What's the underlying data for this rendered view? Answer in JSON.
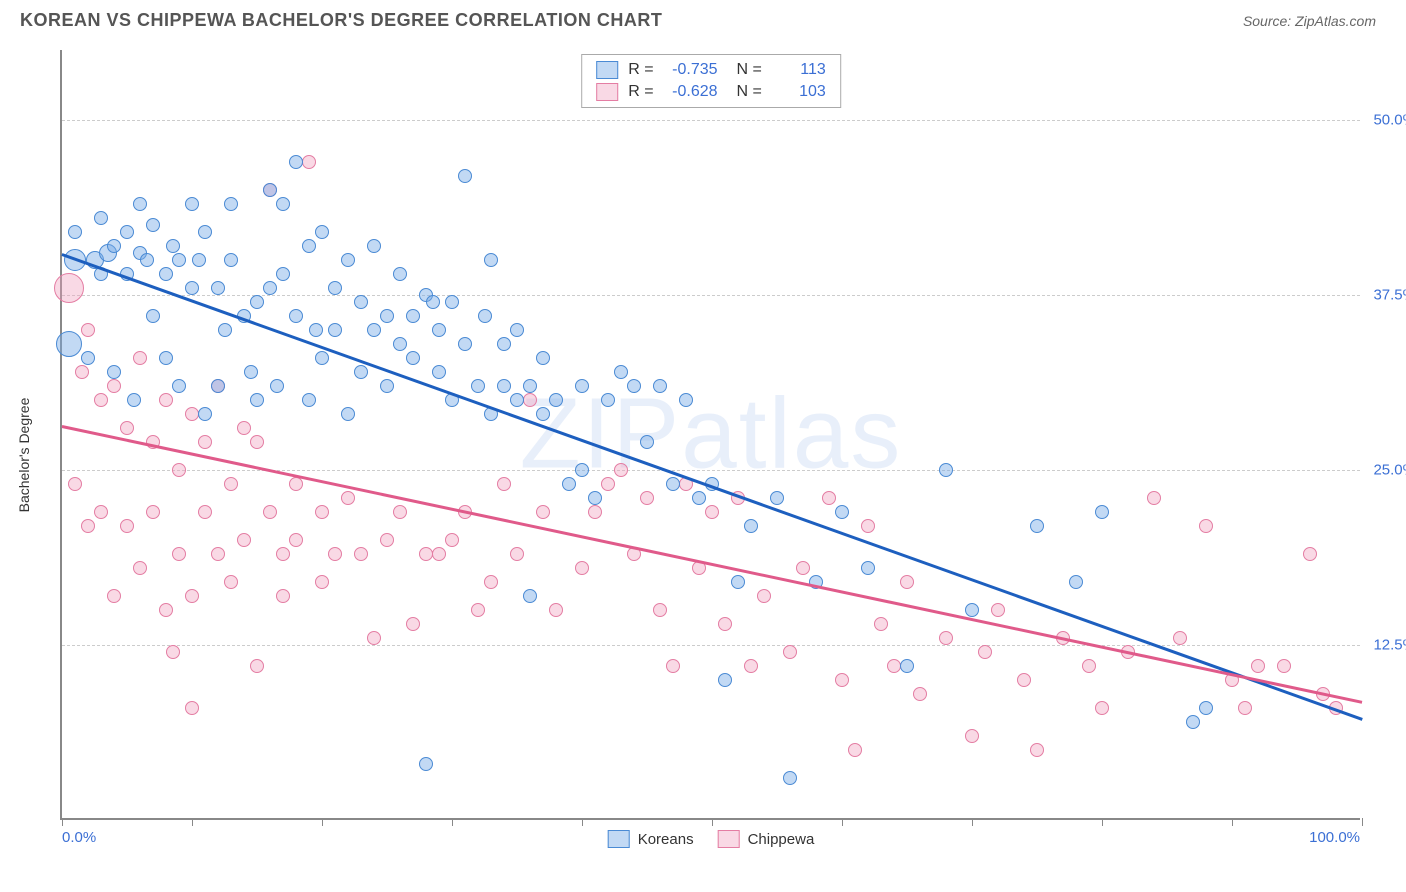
{
  "header": {
    "title": "KOREAN VS CHIPPEWA BACHELOR'S DEGREE CORRELATION CHART",
    "source": "Source: ZipAtlas.com"
  },
  "chart": {
    "ylabel": "Bachelor's Degree",
    "watermark": "ZIPatlas",
    "xlim": [
      0,
      100
    ],
    "ylim": [
      0,
      55
    ],
    "x_min_label": "0.0%",
    "x_max_label": "100.0%",
    "y_gridlines": [
      {
        "value": 12.5,
        "label": "12.5%"
      },
      {
        "value": 25.0,
        "label": "25.0%"
      },
      {
        "value": 37.5,
        "label": "37.5%"
      },
      {
        "value": 50.0,
        "label": "50.0%"
      }
    ],
    "x_ticks": [
      0,
      10,
      20,
      30,
      40,
      50,
      60,
      70,
      80,
      90,
      100
    ],
    "series": [
      {
        "name": "Koreans",
        "fill": "rgba(120,170,230,0.45)",
        "stroke": "#4a8ad4",
        "line_color": "#1d5fbf",
        "trend": {
          "x1": 0,
          "y1": 40.5,
          "x2": 100,
          "y2": 7.3
        },
        "correlation_R": "-0.735",
        "correlation_N": "113",
        "default_size": 14,
        "points": [
          {
            "x": 0.5,
            "y": 34,
            "s": 26
          },
          {
            "x": 1,
            "y": 40,
            "s": 22
          },
          {
            "x": 1,
            "y": 42
          },
          {
            "x": 2,
            "y": 33
          },
          {
            "x": 2.5,
            "y": 40,
            "s": 18
          },
          {
            "x": 3,
            "y": 43
          },
          {
            "x": 3,
            "y": 39
          },
          {
            "x": 3.5,
            "y": 40.5,
            "s": 18
          },
          {
            "x": 4,
            "y": 41
          },
          {
            "x": 4,
            "y": 32
          },
          {
            "x": 5,
            "y": 42
          },
          {
            "x": 5,
            "y": 39
          },
          {
            "x": 5.5,
            "y": 30
          },
          {
            "x": 6,
            "y": 44
          },
          {
            "x": 6,
            "y": 40.5
          },
          {
            "x": 6.5,
            "y": 40
          },
          {
            "x": 7,
            "y": 42.5
          },
          {
            "x": 7,
            "y": 36
          },
          {
            "x": 8,
            "y": 39
          },
          {
            "x": 8,
            "y": 33
          },
          {
            "x": 8.5,
            "y": 41
          },
          {
            "x": 9,
            "y": 40
          },
          {
            "x": 9,
            "y": 31
          },
          {
            "x": 10,
            "y": 38
          },
          {
            "x": 10,
            "y": 44
          },
          {
            "x": 10.5,
            "y": 40
          },
          {
            "x": 11,
            "y": 42
          },
          {
            "x": 11,
            "y": 29
          },
          {
            "x": 12,
            "y": 31
          },
          {
            "x": 12,
            "y": 38
          },
          {
            "x": 12.5,
            "y": 35
          },
          {
            "x": 13,
            "y": 40
          },
          {
            "x": 13,
            "y": 44
          },
          {
            "x": 14,
            "y": 36
          },
          {
            "x": 14.5,
            "y": 32
          },
          {
            "x": 15,
            "y": 37
          },
          {
            "x": 15,
            "y": 30
          },
          {
            "x": 16,
            "y": 45
          },
          {
            "x": 16,
            "y": 38
          },
          {
            "x": 16.5,
            "y": 31
          },
          {
            "x": 17,
            "y": 39
          },
          {
            "x": 17,
            "y": 44
          },
          {
            "x": 18,
            "y": 47
          },
          {
            "x": 18,
            "y": 36
          },
          {
            "x": 19,
            "y": 41
          },
          {
            "x": 19,
            "y": 30
          },
          {
            "x": 19.5,
            "y": 35
          },
          {
            "x": 20,
            "y": 42
          },
          {
            "x": 20,
            "y": 33
          },
          {
            "x": 21,
            "y": 38
          },
          {
            "x": 21,
            "y": 35
          },
          {
            "x": 22,
            "y": 40
          },
          {
            "x": 22,
            "y": 29
          },
          {
            "x": 23,
            "y": 37
          },
          {
            "x": 23,
            "y": 32
          },
          {
            "x": 24,
            "y": 35
          },
          {
            "x": 24,
            "y": 41
          },
          {
            "x": 25,
            "y": 31
          },
          {
            "x": 25,
            "y": 36
          },
          {
            "x": 26,
            "y": 34
          },
          {
            "x": 26,
            "y": 39
          },
          {
            "x": 27,
            "y": 33
          },
          {
            "x": 27,
            "y": 36
          },
          {
            "x": 28,
            "y": 37.5
          },
          {
            "x": 28.5,
            "y": 37
          },
          {
            "x": 29,
            "y": 32
          },
          {
            "x": 29,
            "y": 35
          },
          {
            "x": 30,
            "y": 37
          },
          {
            "x": 30,
            "y": 30
          },
          {
            "x": 31,
            "y": 46
          },
          {
            "x": 31,
            "y": 34
          },
          {
            "x": 32,
            "y": 31
          },
          {
            "x": 32.5,
            "y": 36
          },
          {
            "x": 33,
            "y": 40
          },
          {
            "x": 33,
            "y": 29
          },
          {
            "x": 34,
            "y": 31
          },
          {
            "x": 34,
            "y": 34
          },
          {
            "x": 35,
            "y": 35
          },
          {
            "x": 35,
            "y": 30
          },
          {
            "x": 36,
            "y": 31
          },
          {
            "x": 36,
            "y": 16
          },
          {
            "x": 37,
            "y": 29
          },
          {
            "x": 37,
            "y": 33
          },
          {
            "x": 38,
            "y": 30
          },
          {
            "x": 39,
            "y": 24
          },
          {
            "x": 40,
            "y": 31
          },
          {
            "x": 40,
            "y": 25
          },
          {
            "x": 41,
            "y": 23
          },
          {
            "x": 42,
            "y": 30
          },
          {
            "x": 43,
            "y": 32
          },
          {
            "x": 44,
            "y": 31
          },
          {
            "x": 45,
            "y": 27
          },
          {
            "x": 46,
            "y": 31
          },
          {
            "x": 47,
            "y": 24
          },
          {
            "x": 48,
            "y": 30
          },
          {
            "x": 28,
            "y": 4
          },
          {
            "x": 49,
            "y": 23
          },
          {
            "x": 50,
            "y": 24
          },
          {
            "x": 51,
            "y": 10
          },
          {
            "x": 52,
            "y": 17
          },
          {
            "x": 53,
            "y": 21
          },
          {
            "x": 55,
            "y": 23
          },
          {
            "x": 56,
            "y": 3
          },
          {
            "x": 58,
            "y": 17
          },
          {
            "x": 60,
            "y": 22
          },
          {
            "x": 62,
            "y": 18
          },
          {
            "x": 65,
            "y": 11
          },
          {
            "x": 68,
            "y": 25
          },
          {
            "x": 70,
            "y": 15
          },
          {
            "x": 75,
            "y": 21
          },
          {
            "x": 78,
            "y": 17
          },
          {
            "x": 80,
            "y": 22
          },
          {
            "x": 87,
            "y": 7
          },
          {
            "x": 88,
            "y": 8
          }
        ]
      },
      {
        "name": "Chippewa",
        "fill": "rgba(240,160,190,0.4)",
        "stroke": "#e47da3",
        "line_color": "#e05a8a",
        "trend": {
          "x1": 0,
          "y1": 28.2,
          "x2": 100,
          "y2": 8.5
        },
        "correlation_R": "-0.628",
        "correlation_N": "103",
        "default_size": 14,
        "points": [
          {
            "x": 0.5,
            "y": 38,
            "s": 30
          },
          {
            "x": 1,
            "y": 24
          },
          {
            "x": 1.5,
            "y": 32
          },
          {
            "x": 2,
            "y": 21
          },
          {
            "x": 2,
            "y": 35
          },
          {
            "x": 3,
            "y": 30
          },
          {
            "x": 3,
            "y": 22
          },
          {
            "x": 4,
            "y": 31
          },
          {
            "x": 4,
            "y": 16
          },
          {
            "x": 5,
            "y": 28
          },
          {
            "x": 5,
            "y": 21
          },
          {
            "x": 6,
            "y": 33
          },
          {
            "x": 6,
            "y": 18
          },
          {
            "x": 7,
            "y": 27
          },
          {
            "x": 7,
            "y": 22
          },
          {
            "x": 8,
            "y": 30
          },
          {
            "x": 8,
            "y": 15
          },
          {
            "x": 8.5,
            "y": 12
          },
          {
            "x": 9,
            "y": 25
          },
          {
            "x": 9,
            "y": 19
          },
          {
            "x": 10,
            "y": 29
          },
          {
            "x": 10,
            "y": 16
          },
          {
            "x": 10,
            "y": 8
          },
          {
            "x": 11,
            "y": 22
          },
          {
            "x": 11,
            "y": 27
          },
          {
            "x": 12,
            "y": 19
          },
          {
            "x": 12,
            "y": 31
          },
          {
            "x": 13,
            "y": 24
          },
          {
            "x": 13,
            "y": 17
          },
          {
            "x": 14,
            "y": 28
          },
          {
            "x": 14,
            "y": 20
          },
          {
            "x": 15,
            "y": 11
          },
          {
            "x": 15,
            "y": 27
          },
          {
            "x": 16,
            "y": 22
          },
          {
            "x": 16,
            "y": 45
          },
          {
            "x": 17,
            "y": 19
          },
          {
            "x": 17,
            "y": 16
          },
          {
            "x": 18,
            "y": 24
          },
          {
            "x": 18,
            "y": 20
          },
          {
            "x": 19,
            "y": 47
          },
          {
            "x": 20,
            "y": 22
          },
          {
            "x": 20,
            "y": 17
          },
          {
            "x": 21,
            "y": 19
          },
          {
            "x": 22,
            "y": 23
          },
          {
            "x": 23,
            "y": 19
          },
          {
            "x": 24,
            "y": 13
          },
          {
            "x": 25,
            "y": 20
          },
          {
            "x": 26,
            "y": 22
          },
          {
            "x": 27,
            "y": 14
          },
          {
            "x": 28,
            "y": 19
          },
          {
            "x": 29,
            "y": 19
          },
          {
            "x": 30,
            "y": 20
          },
          {
            "x": 31,
            "y": 22
          },
          {
            "x": 32,
            "y": 15
          },
          {
            "x": 33,
            "y": 17
          },
          {
            "x": 34,
            "y": 24
          },
          {
            "x": 35,
            "y": 19
          },
          {
            "x": 36,
            "y": 30
          },
          {
            "x": 37,
            "y": 22
          },
          {
            "x": 38,
            "y": 15
          },
          {
            "x": 40,
            "y": 18
          },
          {
            "x": 41,
            "y": 22
          },
          {
            "x": 42,
            "y": 24
          },
          {
            "x": 43,
            "y": 25
          },
          {
            "x": 44,
            "y": 19
          },
          {
            "x": 45,
            "y": 23
          },
          {
            "x": 46,
            "y": 15
          },
          {
            "x": 47,
            "y": 11
          },
          {
            "x": 48,
            "y": 24
          },
          {
            "x": 49,
            "y": 18
          },
          {
            "x": 50,
            "y": 22
          },
          {
            "x": 51,
            "y": 14
          },
          {
            "x": 52,
            "y": 23
          },
          {
            "x": 53,
            "y": 11
          },
          {
            "x": 54,
            "y": 16
          },
          {
            "x": 56,
            "y": 12
          },
          {
            "x": 57,
            "y": 18
          },
          {
            "x": 59,
            "y": 23
          },
          {
            "x": 60,
            "y": 10
          },
          {
            "x": 61,
            "y": 5
          },
          {
            "x": 62,
            "y": 21
          },
          {
            "x": 63,
            "y": 14
          },
          {
            "x": 64,
            "y": 11
          },
          {
            "x": 65,
            "y": 17
          },
          {
            "x": 66,
            "y": 9
          },
          {
            "x": 68,
            "y": 13
          },
          {
            "x": 70,
            "y": 6
          },
          {
            "x": 71,
            "y": 12
          },
          {
            "x": 72,
            "y": 15
          },
          {
            "x": 74,
            "y": 10
          },
          {
            "x": 75,
            "y": 5
          },
          {
            "x": 77,
            "y": 13
          },
          {
            "x": 79,
            "y": 11
          },
          {
            "x": 80,
            "y": 8
          },
          {
            "x": 82,
            "y": 12
          },
          {
            "x": 84,
            "y": 23
          },
          {
            "x": 86,
            "y": 13
          },
          {
            "x": 88,
            "y": 21
          },
          {
            "x": 90,
            "y": 10
          },
          {
            "x": 91,
            "y": 8
          },
          {
            "x": 92,
            "y": 11
          },
          {
            "x": 94,
            "y": 11
          },
          {
            "x": 96,
            "y": 19
          },
          {
            "x": 97,
            "y": 9
          },
          {
            "x": 98,
            "y": 8
          }
        ]
      }
    ]
  }
}
